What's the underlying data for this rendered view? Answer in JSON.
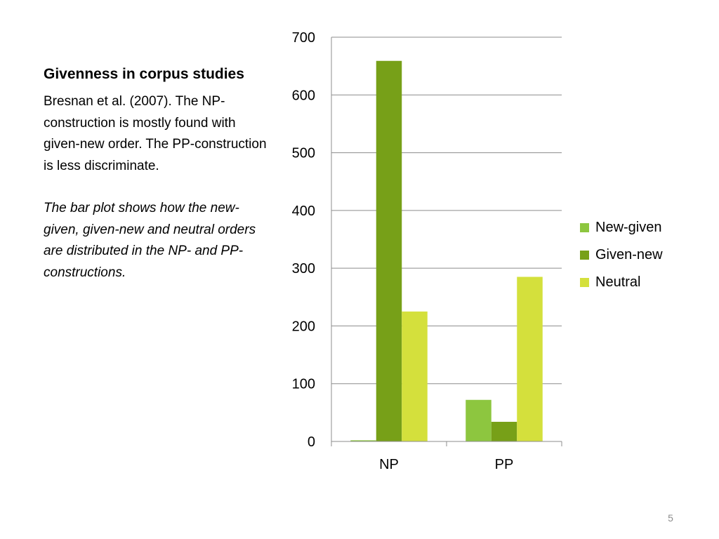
{
  "slide": {
    "title": "Givenness in corpus studies",
    "paragraph1": "Bresnan et al. (2007). The NP-construction is mostly found with given-new order. The PP-construction is less discriminate.",
    "paragraph2": "The bar plot shows how the new-given, given-new and neutral orders are distributed in the NP- and PP-constructions.",
    "page_number": "5"
  },
  "chart_data": {
    "type": "bar",
    "categories": [
      "NP",
      "PP"
    ],
    "series": [
      {
        "name": "New-given",
        "values": [
          2,
          72
        ],
        "color": "#8DC63F"
      },
      {
        "name": "Given-new",
        "values": [
          659,
          34
        ],
        "color": "#77A018"
      },
      {
        "name": "Neutral",
        "values": [
          225,
          285
        ],
        "color": "#D4E03C"
      }
    ],
    "ylim": [
      0,
      700
    ],
    "yticks": [
      0,
      100,
      200,
      300,
      400,
      500,
      600,
      700
    ],
    "grid": true,
    "legend_position": "right"
  }
}
